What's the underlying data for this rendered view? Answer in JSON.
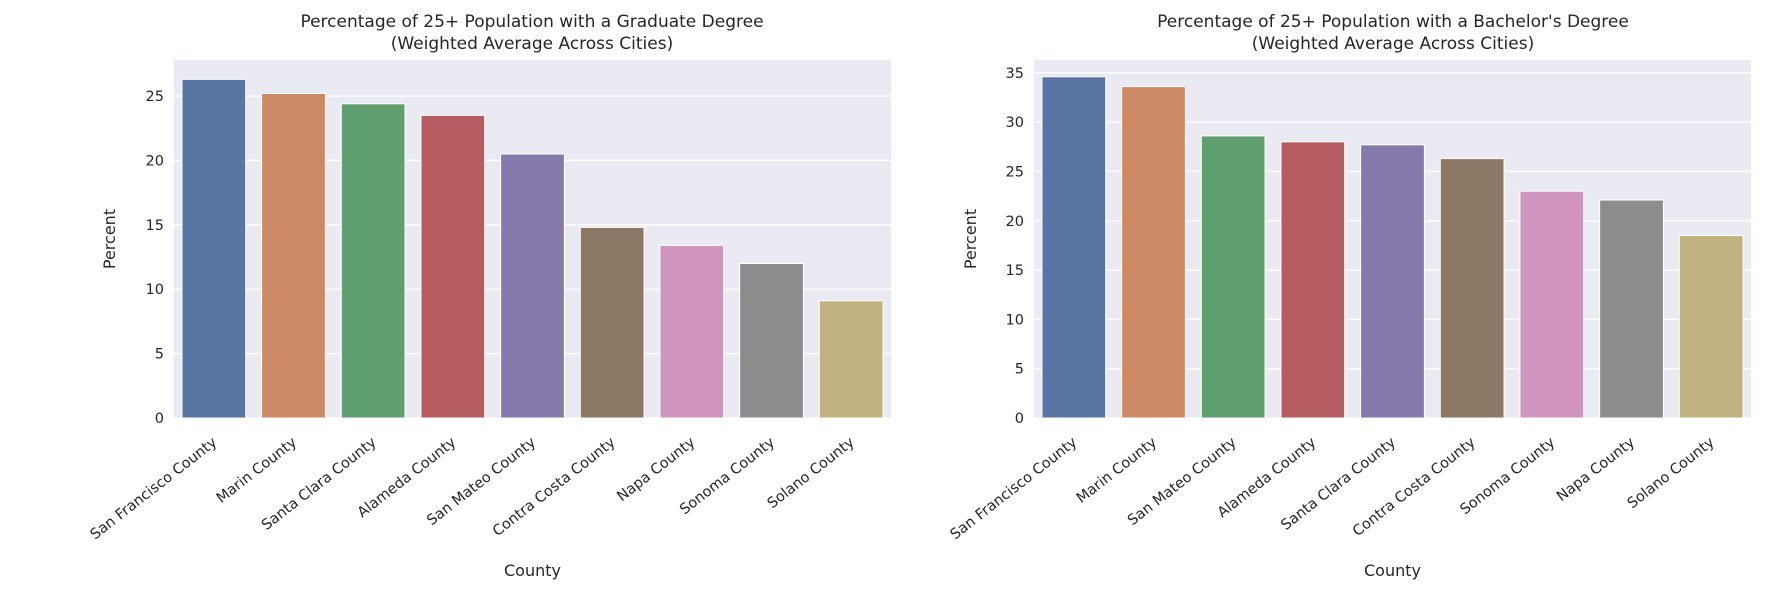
{
  "colors": {
    "plot_bg": "#eaeaf2",
    "grid": "#ffffff",
    "bars": [
      "#5975a4",
      "#cc8963",
      "#5f9e6e",
      "#b55d60",
      "#857aab",
      "#8d7866",
      "#d095bf",
      "#8c8c8c",
      "#c1b37f"
    ]
  },
  "chart_data": [
    {
      "type": "bar",
      "title": "Percentage of 25+ Population with a Graduate Degree",
      "subtitle": "(Weighted Average Across Cities)",
      "xlabel": "County",
      "ylabel": "Percent",
      "categories": [
        "San Francisco County",
        "Marin County",
        "Santa Clara County",
        "Alameda County",
        "San Mateo County",
        "Contra Costa County",
        "Napa County",
        "Sonoma County",
        "Solano County"
      ],
      "values": [
        26.3,
        25.2,
        24.4,
        23.5,
        20.5,
        14.8,
        13.4,
        12.0,
        9.1
      ],
      "ylim": [
        0,
        27.8
      ],
      "yticks": [
        0,
        5,
        10,
        15,
        20,
        25
      ],
      "grid": true,
      "legend": "none"
    },
    {
      "type": "bar",
      "title": "Percentage of 25+ Population with a Bachelor's Degree",
      "subtitle": "(Weighted Average Across Cities)",
      "xlabel": "County",
      "ylabel": "Percent",
      "categories": [
        "San Francisco County",
        "Marin County",
        "San Mateo County",
        "Alameda County",
        "Santa Clara County",
        "Contra Costa County",
        "Sonoma County",
        "Napa County",
        "Solano County"
      ],
      "values": [
        34.6,
        33.6,
        28.6,
        28.0,
        27.7,
        26.3,
        23.0,
        22.1,
        18.5
      ],
      "ylim": [
        0,
        36.3
      ],
      "yticks": [
        0,
        5,
        10,
        15,
        20,
        25,
        30,
        35
      ],
      "grid": true,
      "legend": "none"
    }
  ]
}
